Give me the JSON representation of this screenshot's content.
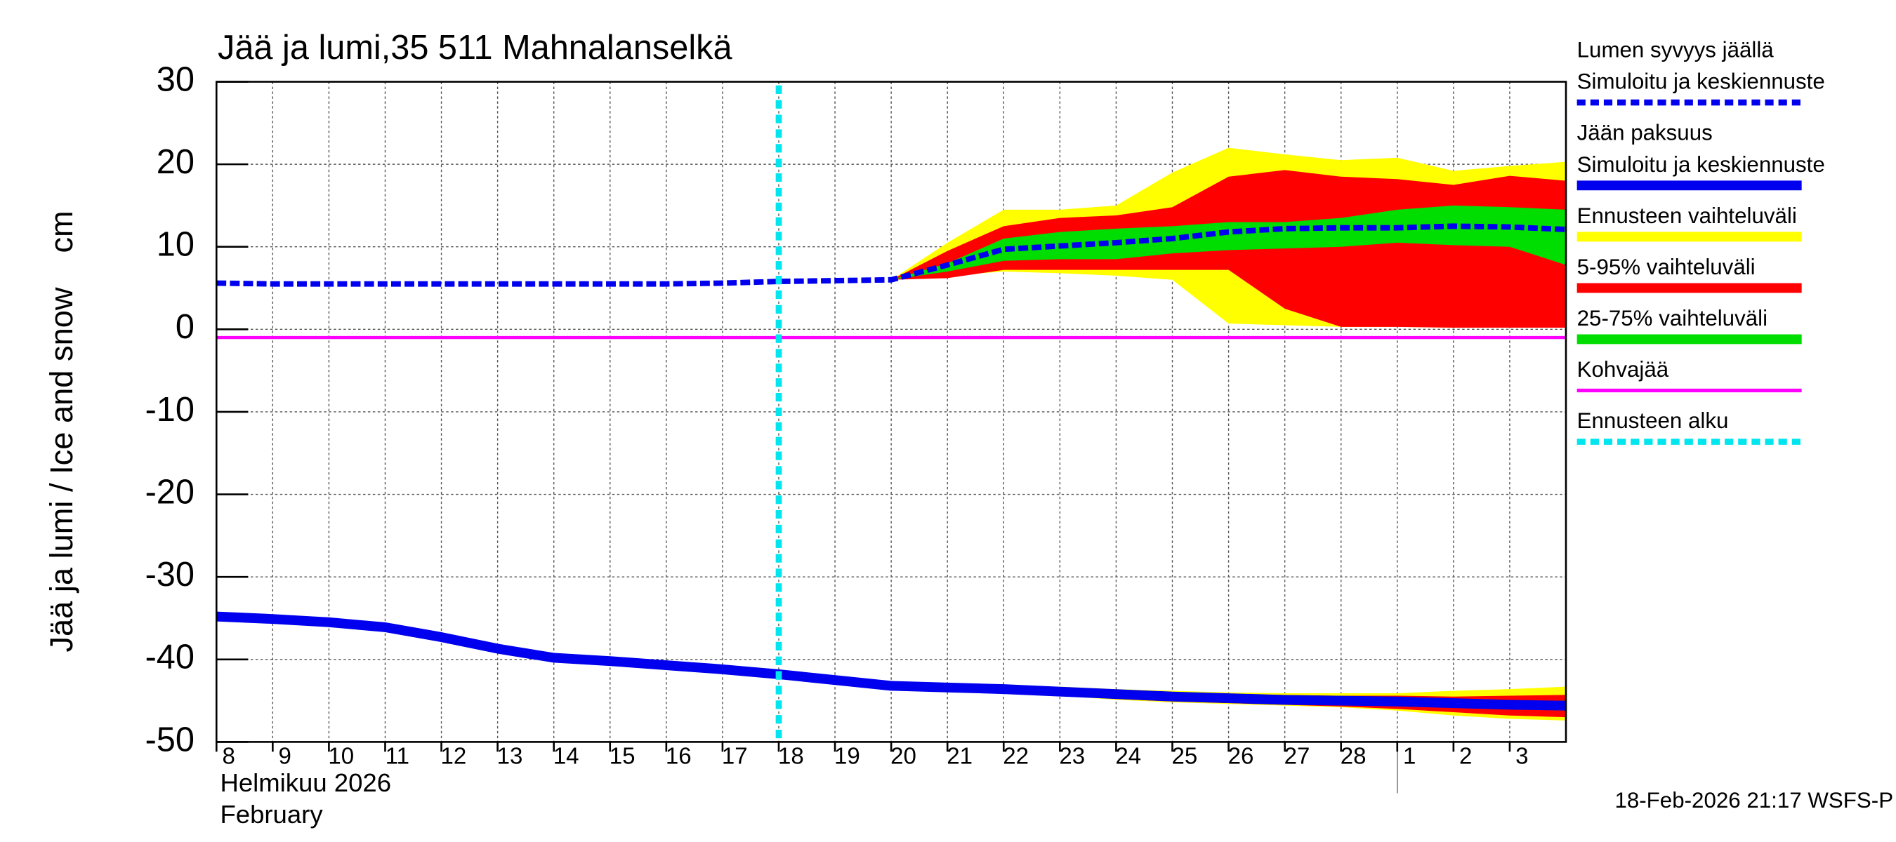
{
  "chart_data": {
    "type": "line",
    "title": "Jää ja lumi,35 511 Mahnalanselkä",
    "y_label": "Jää ja lumi / Ice and snow",
    "y_unit": "cm",
    "x_label_fi": "Helmikuu  2026",
    "x_label_en": "February",
    "footer": "18-Feb-2026 21:17 WSFS-P",
    "grid": true,
    "ylim": [
      -50,
      30
    ],
    "yticks": [
      -50,
      -40,
      -30,
      -20,
      -10,
      0,
      10,
      20,
      30
    ],
    "xlim": [
      "2026-02-08",
      "2026-03-04"
    ],
    "xticks": [
      {
        "value": "2026-02-08",
        "label": "8"
      },
      {
        "value": "2026-02-09",
        "label": "9"
      },
      {
        "value": "2026-02-10",
        "label": "10"
      },
      {
        "value": "2026-02-11",
        "label": "11"
      },
      {
        "value": "2026-02-12",
        "label": "12"
      },
      {
        "value": "2026-02-13",
        "label": "13"
      },
      {
        "value": "2026-02-14",
        "label": "14"
      },
      {
        "value": "2026-02-15",
        "label": "15"
      },
      {
        "value": "2026-02-16",
        "label": "16"
      },
      {
        "value": "2026-02-17",
        "label": "17"
      },
      {
        "value": "2026-02-18",
        "label": "18"
      },
      {
        "value": "2026-02-19",
        "label": "19"
      },
      {
        "value": "2026-02-20",
        "label": "20"
      },
      {
        "value": "2026-02-21",
        "label": "21"
      },
      {
        "value": "2026-02-22",
        "label": "22"
      },
      {
        "value": "2026-02-23",
        "label": "23"
      },
      {
        "value": "2026-02-24",
        "label": "24"
      },
      {
        "value": "2026-02-25",
        "label": "25"
      },
      {
        "value": "2026-02-26",
        "label": "26"
      },
      {
        "value": "2026-02-27",
        "label": "27"
      },
      {
        "value": "2026-02-28",
        "label": "28"
      },
      {
        "value": "2026-03-01",
        "label": "1"
      },
      {
        "value": "2026-03-02",
        "label": "2"
      },
      {
        "value": "2026-03-03",
        "label": "3"
      }
    ],
    "x": [
      "2026-02-08",
      "2026-02-09",
      "2026-02-10",
      "2026-02-11",
      "2026-02-12",
      "2026-02-13",
      "2026-02-14",
      "2026-02-15",
      "2026-02-16",
      "2026-02-17",
      "2026-02-18",
      "2026-02-19",
      "2026-02-20",
      "2026-02-21",
      "2026-02-22",
      "2026-02-23",
      "2026-02-24",
      "2026-02-25",
      "2026-02-26",
      "2026-02-27",
      "2026-02-28",
      "2026-03-01",
      "2026-03-02",
      "2026-03-03",
      "2026-03-04"
    ],
    "series": [
      {
        "kind": "dashed",
        "name": "Lumen syvyys jäällä",
        "subname": "Simuloitu ja keskiennuste",
        "color": "#0000ee",
        "values": [
          5.6,
          5.5,
          5.5,
          5.5,
          5.5,
          5.5,
          5.5,
          5.5,
          5.5,
          5.6,
          5.8,
          5.9,
          6.0,
          7.8,
          9.7,
          10.1,
          10.5,
          11.0,
          11.8,
          12.2,
          12.3,
          12.3,
          12.5,
          12.4,
          12.1
        ]
      },
      {
        "kind": "solid",
        "name": "Jään paksuus",
        "subname": "Simuloitu ja keskiennuste",
        "color": "#0000ee",
        "values": [
          -34.8,
          -35.1,
          -35.5,
          -36.1,
          -37.3,
          -38.7,
          -39.8,
          -40.2,
          -40.7,
          -41.2,
          -41.8,
          -42.5,
          -43.2,
          -43.4,
          -43.6,
          -43.9,
          -44.2,
          -44.5,
          -44.7,
          -44.9,
          -45.0,
          -45.1,
          -45.3,
          -45.5,
          -45.6
        ]
      },
      {
        "kind": "band",
        "name": "Ennusteen vaihteluväli",
        "color": "#ffff00",
        "bands": [
          {
            "upper": [
              null,
              null,
              null,
              null,
              null,
              null,
              null,
              null,
              null,
              null,
              null,
              null,
              6,
              10.5,
              14.5,
              14.5,
              15,
              19,
              22,
              21.2,
              20.5,
              20.8,
              19.2,
              19.8,
              20.3
            ],
            "lower": [
              null,
              null,
              null,
              null,
              null,
              null,
              null,
              null,
              null,
              null,
              null,
              null,
              6,
              6.5,
              7,
              6.8,
              6.5,
              6,
              0.7,
              0.5,
              0.3,
              0.3,
              0.2,
              0.2,
              0.2
            ]
          },
          {
            "upper": [
              null,
              null,
              null,
              null,
              null,
              null,
              null,
              null,
              null,
              null,
              null,
              null,
              -43.2,
              -43.1,
              -43.2,
              -43.3,
              -43.6,
              -43.8,
              -44,
              -44.1,
              -44.1,
              -44.1,
              -43.8,
              -43.6,
              -43.3
            ],
            "lower": [
              null,
              null,
              null,
              null,
              null,
              null,
              null,
              null,
              null,
              null,
              null,
              null,
              -43.2,
              -43.6,
              -43.9,
              -44.4,
              -44.9,
              -45.2,
              -45.4,
              -45.6,
              -45.8,
              -46.2,
              -46.8,
              -47.2,
              -47.4
            ]
          }
        ]
      },
      {
        "kind": "band",
        "name": "5-95% vaihteluväli",
        "color": "#ff0000",
        "bands": [
          {
            "upper": [
              null,
              null,
              null,
              null,
              null,
              null,
              null,
              null,
              null,
              null,
              null,
              null,
              6,
              9.5,
              12.5,
              13.5,
              13.8,
              14.8,
              18.5,
              19.3,
              18.5,
              18.2,
              17.5,
              18.6,
              18
            ],
            "lower": [
              null,
              null,
              null,
              null,
              null,
              null,
              null,
              null,
              null,
              null,
              null,
              null,
              6,
              6.2,
              7.2,
              7.2,
              7.2,
              7.2,
              7.2,
              2.5,
              0.3,
              0.3,
              0.2,
              0.2,
              0.2
            ]
          },
          {
            "upper": [
              null,
              null,
              null,
              null,
              null,
              null,
              null,
              null,
              null,
              null,
              null,
              null,
              -43.2,
              -43.2,
              -43.3,
              -43.5,
              -43.8,
              -44,
              -44.2,
              -44.3,
              -44.4,
              -44.4,
              -44.5,
              -44.4,
              -44.3
            ],
            "lower": [
              null,
              null,
              null,
              null,
              null,
              null,
              null,
              null,
              null,
              null,
              null,
              null,
              -43.2,
              -43.5,
              -43.8,
              -44.2,
              -44.8,
              -45.1,
              -45.3,
              -45.5,
              -45.7,
              -46,
              -46.4,
              -46.8,
              -47
            ]
          }
        ]
      },
      {
        "kind": "band",
        "name": "25-75% vaihteluväli",
        "color": "#00dd00",
        "bands": [
          {
            "upper": [
              null,
              null,
              null,
              null,
              null,
              null,
              null,
              null,
              null,
              null,
              null,
              null,
              6,
              8,
              11,
              11.8,
              12.2,
              12.5,
              13,
              13,
              13.5,
              14.5,
              15,
              14.8,
              14.5
            ],
            "lower": [
              null,
              null,
              null,
              null,
              null,
              null,
              null,
              null,
              null,
              null,
              null,
              null,
              6,
              7,
              8.3,
              8.5,
              8.5,
              9.2,
              9.6,
              9.8,
              10,
              10.5,
              10.2,
              10,
              7.8
            ]
          },
          {
            "upper": [
              null,
              null,
              null,
              null,
              null,
              null,
              null,
              null,
              null,
              null,
              null,
              null,
              -43.2,
              -43.3,
              -43.5,
              -43.7,
              -44,
              -44.3,
              -44.5,
              -44.7,
              -44.8,
              -44.8,
              -44.9,
              -45,
              -45
            ],
            "lower": [
              null,
              null,
              null,
              null,
              null,
              null,
              null,
              null,
              null,
              null,
              null,
              null,
              -43.2,
              -43.4,
              -43.7,
              -44,
              -44.4,
              -44.7,
              -44.9,
              -45.1,
              -45.3,
              -45.4,
              -45.7,
              -46,
              -46.2
            ]
          }
        ]
      },
      {
        "kind": "hline",
        "name": "Kohvajää",
        "color": "#ff00ff",
        "value": -1
      },
      {
        "kind": "vline",
        "name": "Ennusteen alku",
        "color": "#00e5ee",
        "at": "2026-02-18"
      }
    ]
  }
}
